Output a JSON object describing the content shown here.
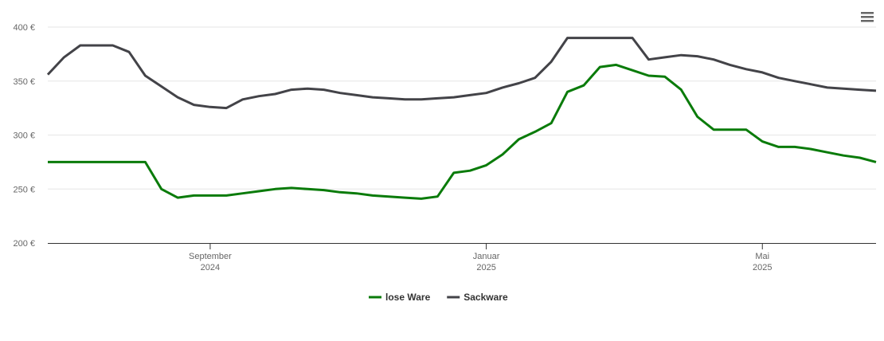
{
  "chart_data": {
    "type": "line",
    "categories": [
      null,
      null,
      null,
      null,
      null,
      null,
      null,
      null,
      null,
      null,
      [
        "September",
        "2024"
      ],
      null,
      null,
      null,
      null,
      null,
      null,
      null,
      null,
      null,
      null,
      null,
      null,
      null,
      null,
      null,
      null,
      [
        "Januar",
        "2025"
      ],
      null,
      null,
      null,
      null,
      null,
      null,
      null,
      null,
      null,
      null,
      null,
      null,
      null,
      null,
      null,
      null,
      [
        "Mai",
        "2025"
      ],
      null,
      null,
      null,
      null,
      null,
      null,
      null
    ],
    "series": [
      {
        "name": "lose Ware",
        "color": "#0a7b0a",
        "values": [
          275,
          275,
          275,
          275,
          275,
          275,
          275,
          250,
          242,
          244,
          244,
          244,
          246,
          248,
          250,
          251,
          250,
          249,
          247,
          246,
          244,
          243,
          242,
          241,
          243,
          265,
          267,
          272,
          282,
          296,
          303,
          311,
          340,
          346,
          363,
          365,
          360,
          355,
          354,
          342,
          317,
          305,
          305,
          305,
          294,
          289,
          289,
          287,
          284,
          281,
          279,
          275
        ]
      },
      {
        "name": "Sackware",
        "color": "#434348",
        "values": [
          356,
          372,
          383,
          383,
          383,
          377,
          355,
          345,
          335,
          328,
          326,
          325,
          333,
          336,
          338,
          342,
          343,
          342,
          339,
          337,
          335,
          334,
          333,
          333,
          334,
          335,
          337,
          339,
          344,
          348,
          353,
          368,
          390,
          390,
          390,
          390,
          390,
          370,
          372,
          374,
          373,
          370,
          365,
          361,
          358,
          353,
          350,
          347,
          344,
          343,
          342,
          341
        ]
      }
    ],
    "ylim": [
      200,
      400
    ],
    "yticks": [
      {
        "value": 200,
        "label": "200 €"
      },
      {
        "value": 250,
        "label": "250 €"
      },
      {
        "value": 300,
        "label": "300 €"
      },
      {
        "value": 350,
        "label": "350 €"
      },
      {
        "value": 400,
        "label": "400 €"
      }
    ],
    "grid": true,
    "legend": "bottom"
  }
}
